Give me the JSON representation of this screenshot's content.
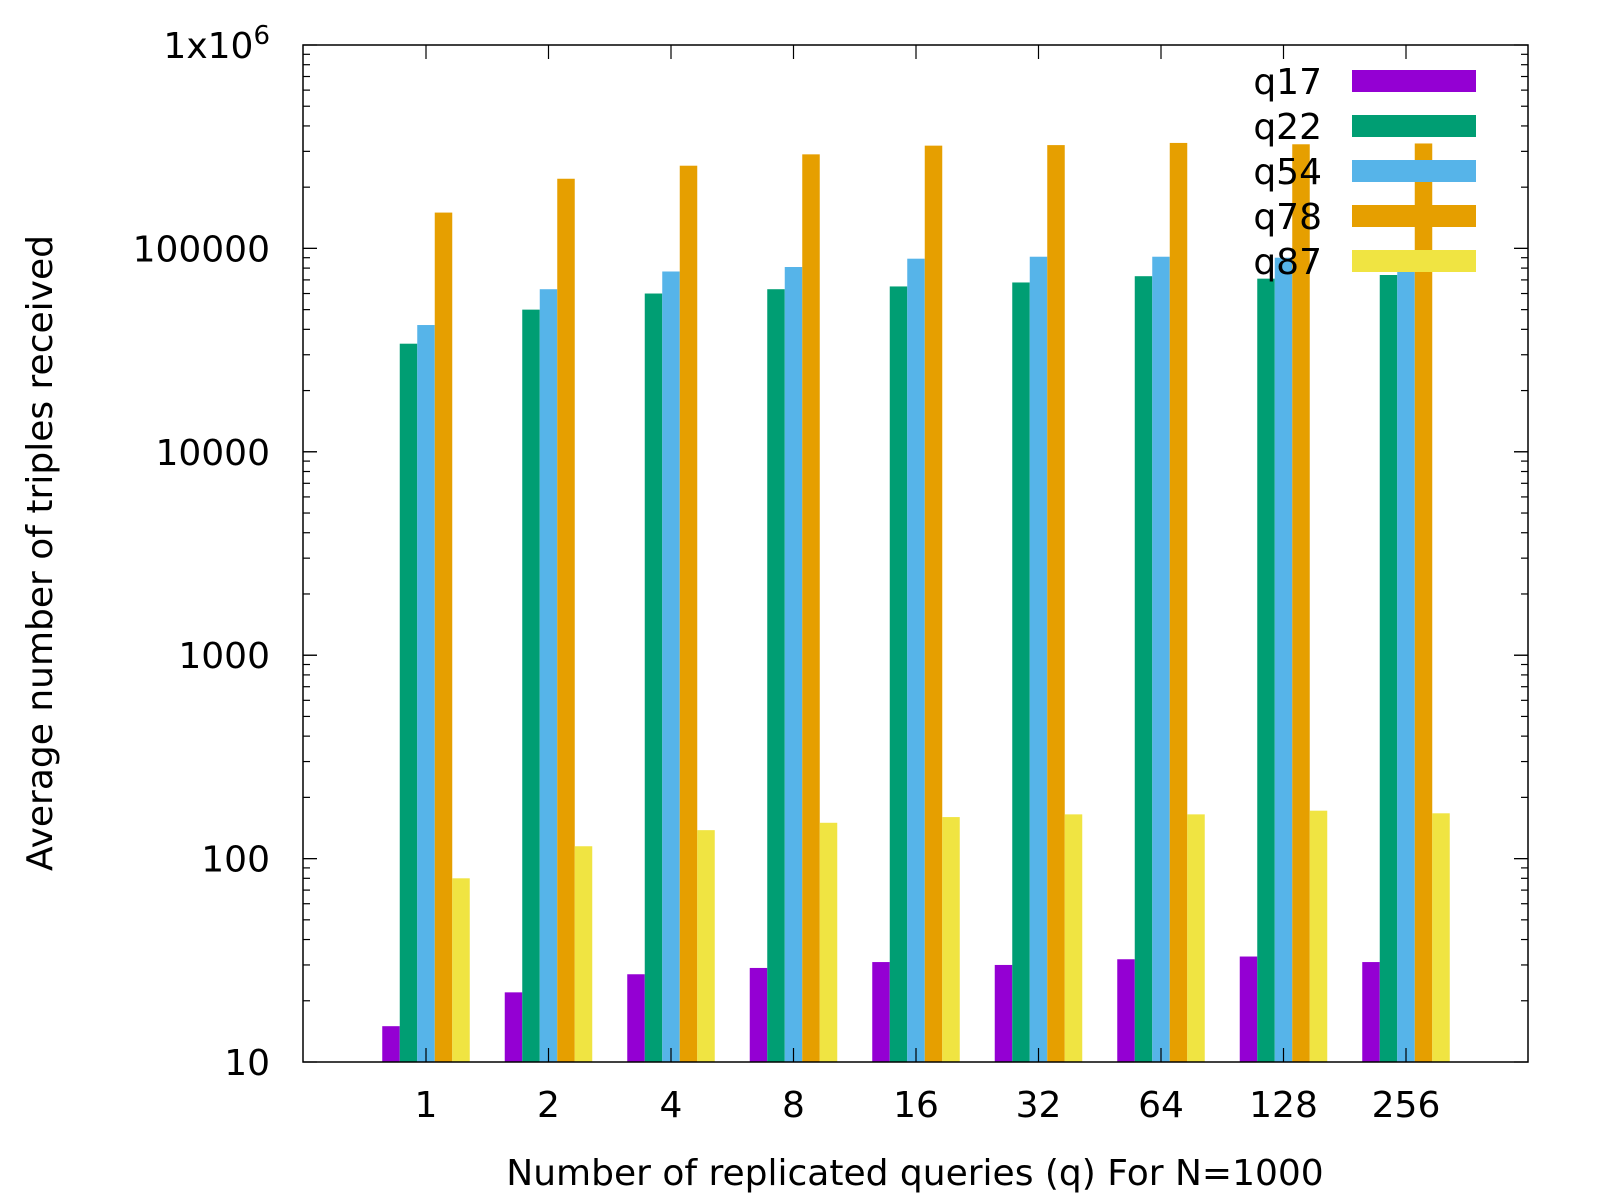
{
  "chart_data": {
    "type": "bar",
    "title": "",
    "xlabel": "Number of replicated queries (q) For N=1000",
    "ylabel": "Average number of triples received",
    "yscale": "log",
    "ylim": [
      10,
      1000000
    ],
    "yticks": [
      {
        "value": 10,
        "label": "10"
      },
      {
        "value": 100,
        "label": "100"
      },
      {
        "value": 1000,
        "label": "1000"
      },
      {
        "value": 10000,
        "label": "10000"
      },
      {
        "value": 100000,
        "label": "100000"
      },
      {
        "value": 1000000,
        "label": "1x10",
        "sup": "6"
      }
    ],
    "categories": [
      "1",
      "2",
      "4",
      "8",
      "16",
      "32",
      "64",
      "128",
      "256"
    ],
    "legend_position": "top-right",
    "grid": false,
    "series": [
      {
        "name": "q17",
        "color": "#9400d3",
        "values": [
          15,
          22,
          27,
          29,
          31,
          30,
          32,
          33,
          31
        ]
      },
      {
        "name": "q22",
        "color": "#009e73",
        "values": [
          34000,
          50000,
          60000,
          63000,
          65000,
          68000,
          73000,
          71000,
          74000
        ]
      },
      {
        "name": "q54",
        "color": "#56b4e9",
        "values": [
          42000,
          63000,
          77000,
          81000,
          89000,
          91000,
          91000,
          90000,
          95000
        ]
      },
      {
        "name": "q78",
        "color": "#e69f00",
        "values": [
          150000,
          220000,
          255000,
          290000,
          320000,
          322000,
          330000,
          325000,
          328000
        ]
      },
      {
        "name": "q87",
        "color": "#f0e442",
        "values": [
          80,
          115,
          138,
          150,
          160,
          165,
          165,
          172,
          167
        ]
      }
    ]
  }
}
